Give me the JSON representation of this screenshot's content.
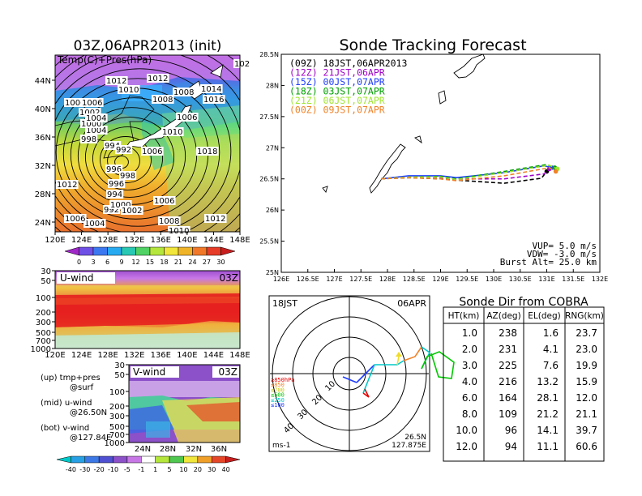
{
  "left_panel": {
    "title": "03Z,06APR2013 (init)",
    "map_label": "Temp(C)+Pres(hPa)",
    "lon_ticks": [
      "120E",
      "124E",
      "128E",
      "132E",
      "136E",
      "140E",
      "144E",
      "148E"
    ],
    "lat_ticks": [
      "44N",
      "40N",
      "36N",
      "32N",
      "28N",
      "24N"
    ],
    "pressure_labels": [
      "1012",
      "1010",
      "1006",
      "1002",
      "1004",
      "1000",
      "998",
      "996",
      "994",
      "992",
      "1006",
      "1014",
      "1016",
      "1008",
      "1018",
      "1008",
      "1010",
      "1012",
      "1006",
      "1004",
      "102"
    ],
    "temp_colorbar": [
      "0",
      "3",
      "6",
      "9",
      "12",
      "15",
      "18",
      "21",
      "24",
      "27",
      "30"
    ],
    "uwind": {
      "label": "U-wind",
      "time": "03Z",
      "levels": [
        "30",
        "50",
        "100",
        "200",
        "300",
        "500",
        "700",
        "1000"
      ],
      "lon_ticks": [
        "120E",
        "124E",
        "128E",
        "132E",
        "136E",
        "140E",
        "144E",
        "148E"
      ]
    },
    "vwind": {
      "label": "V-wind",
      "time": "03Z",
      "levels": [
        "30",
        "50",
        "100",
        "200",
        "300",
        "500",
        "700",
        "1000"
      ],
      "lat_ticks": [
        "24N",
        "28N",
        "32N",
        "36N"
      ]
    },
    "legend_lines": [
      "(up) tmp+pres",
      "@surf",
      "(mid) u-wind",
      "@26.50N",
      "(bot) v-wind",
      "@127.84E"
    ],
    "wind_colorbar": [
      "-40",
      "-30",
      "-20",
      "-10",
      "-5",
      "-1",
      "1",
      "5",
      "10",
      "20",
      "30",
      "40"
    ]
  },
  "chart_data": {
    "type": "line",
    "title": "Sonde Tracking Forecast",
    "xlim": [
      126,
      132
    ],
    "ylim": [
      25,
      28.5
    ],
    "x_ticks": [
      "126E",
      "126.5E",
      "127E",
      "127.5E",
      "128E",
      "128.5E",
      "129E",
      "129.5E",
      "130E",
      "130.5E",
      "131E",
      "131.5E",
      "132E"
    ],
    "y_ticks": [
      "25N",
      "25.5N",
      "26N",
      "26.5N",
      "27N",
      "27.5N",
      "28N",
      "28.5N"
    ],
    "series": [
      {
        "name": "(09Z) 18JST,06APR2013",
        "color": "#000000",
        "dash": "5,3",
        "x": [
          127.88,
          128.4,
          129.0,
          129.3,
          130.2,
          130.9,
          131.0
        ],
        "y": [
          26.5,
          26.52,
          26.5,
          26.48,
          26.43,
          26.51,
          26.62
        ]
      },
      {
        "name": "(12Z) 21JST,06APR",
        "color": "#a000c8",
        "dash": "5,3",
        "x": [
          127.88,
          128.4,
          129.0,
          129.3,
          130.2,
          130.95,
          131.05
        ],
        "y": [
          26.5,
          26.54,
          26.52,
          26.5,
          26.5,
          26.58,
          26.66
        ]
      },
      {
        "name": "(15Z) 00JST,07APR",
        "color": "#1e3cff",
        "dash": "none",
        "x": [
          127.88,
          128.4,
          129.0,
          129.3,
          130.2,
          130.95,
          131.1
        ],
        "y": [
          26.5,
          26.55,
          26.55,
          26.52,
          26.6,
          26.71,
          26.68
        ]
      },
      {
        "name": "(18Z) 03JST,07APR",
        "color": "#00a000",
        "dash": "5,3",
        "x": [
          127.88,
          128.4,
          129.0,
          129.3,
          130.2,
          131.0,
          131.15
        ],
        "y": [
          26.5,
          26.53,
          26.54,
          26.5,
          26.62,
          26.73,
          26.68
        ]
      },
      {
        "name": "(21Z) 06JST,07APR",
        "color": "#a0e632",
        "dash": "5,3",
        "x": [
          127.88,
          128.4,
          129.0,
          129.3,
          130.2,
          131.05,
          131.2
        ],
        "y": [
          26.5,
          26.53,
          26.53,
          26.49,
          26.6,
          26.72,
          26.66
        ]
      },
      {
        "name": "(00Z) 09JST,07APR",
        "color": "#f08228",
        "dash": "5,3",
        "x": [
          127.88,
          128.4,
          129.0,
          129.3,
          130.2,
          131.05,
          131.17
        ],
        "y": [
          26.5,
          26.52,
          26.5,
          26.47,
          26.55,
          26.68,
          26.62
        ]
      }
    ],
    "notes": [
      "VUP= 5.0 m/s",
      "VDW= -3.0 m/s",
      "Burst Alt= 25.0 km"
    ]
  },
  "polar": {
    "time_label": "18JST",
    "date_label": "06APR",
    "ring_labels": [
      "10",
      "20",
      "30",
      "40"
    ],
    "level_legend": [
      {
        "text": "≥850hPa",
        "color": "#e60000"
      },
      {
        "text": "≤850",
        "color": "#f08228"
      },
      {
        "text": "≤700",
        "color": "#c8c800"
      },
      {
        "text": "≤500",
        "color": "#00c800"
      },
      {
        "text": "≤250",
        "color": "#00c8c8"
      },
      {
        "text": "≤100",
        "color": "#1e3cff"
      }
    ],
    "unit": "ms-1",
    "location": [
      "26.5N",
      "127.875E"
    ]
  },
  "table": {
    "title": "Sonde Dir from COBRA",
    "headers": [
      "HT(km)",
      "AZ(deg)",
      "EL(deg)",
      "RNG(km)"
    ],
    "rows": [
      [
        "1.0",
        "238",
        "1.6",
        "23.7"
      ],
      [
        "2.0",
        "231",
        "4.1",
        "23.0"
      ],
      [
        "3.0",
        "225",
        "7.6",
        "19.9"
      ],
      [
        "4.0",
        "216",
        "13.2",
        "15.9"
      ],
      [
        "6.0",
        "164",
        "28.1",
        "12.0"
      ],
      [
        "8.0",
        "109",
        "21.2",
        "21.1"
      ],
      [
        "10.0",
        "96",
        "14.1",
        "39.7"
      ],
      [
        "12.0",
        "94",
        "11.1",
        "60.6"
      ]
    ]
  }
}
